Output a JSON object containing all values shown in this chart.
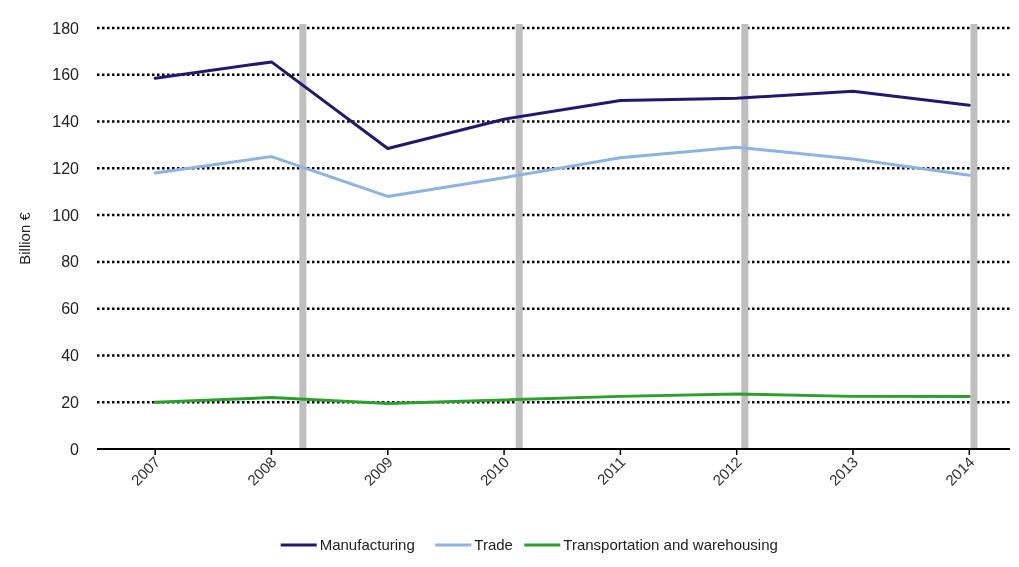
{
  "chart_data": {
    "type": "line",
    "ylabel": "Billion €",
    "x": [
      2007,
      2008,
      2009,
      2010,
      2011,
      2012,
      2013,
      2014
    ],
    "xlim": [
      2006.5,
      2014.35
    ],
    "xticks": [
      2007,
      2008,
      2009,
      2010,
      2011,
      2012,
      2013,
      2014
    ],
    "ylim": [
      0,
      180
    ],
    "yticks": [
      0,
      20,
      40,
      60,
      80,
      100,
      120,
      140,
      160,
      180
    ],
    "grid": "y",
    "legend": "bottom",
    "line_style": "solid",
    "series": [
      {
        "name": "Manufacturing",
        "color": "#1f1a6e",
        "values": [
          158.5,
          165.5,
          128.5,
          141,
          149,
          150,
          153,
          147
        ]
      },
      {
        "name": "Trade",
        "color": "#8db3e2",
        "values": [
          118,
          125,
          108,
          116,
          124.5,
          129,
          124,
          117
        ]
      },
      {
        "name": "Transportation and warehousing",
        "color": "#2ca02c",
        "values": [
          20,
          22,
          19.5,
          21,
          22.5,
          23.5,
          22.5,
          22.5
        ]
      }
    ],
    "ref_lines": [
      {
        "axis": "x",
        "value": 2008.27,
        "color": "#bfbfbf"
      },
      {
        "axis": "x",
        "value": 2010.13,
        "color": "#bfbfbf"
      },
      {
        "axis": "x",
        "value": 2012.07,
        "color": "#bfbfbf"
      },
      {
        "axis": "x",
        "value": 2014.04,
        "color": "#bfbfbf"
      }
    ]
  }
}
